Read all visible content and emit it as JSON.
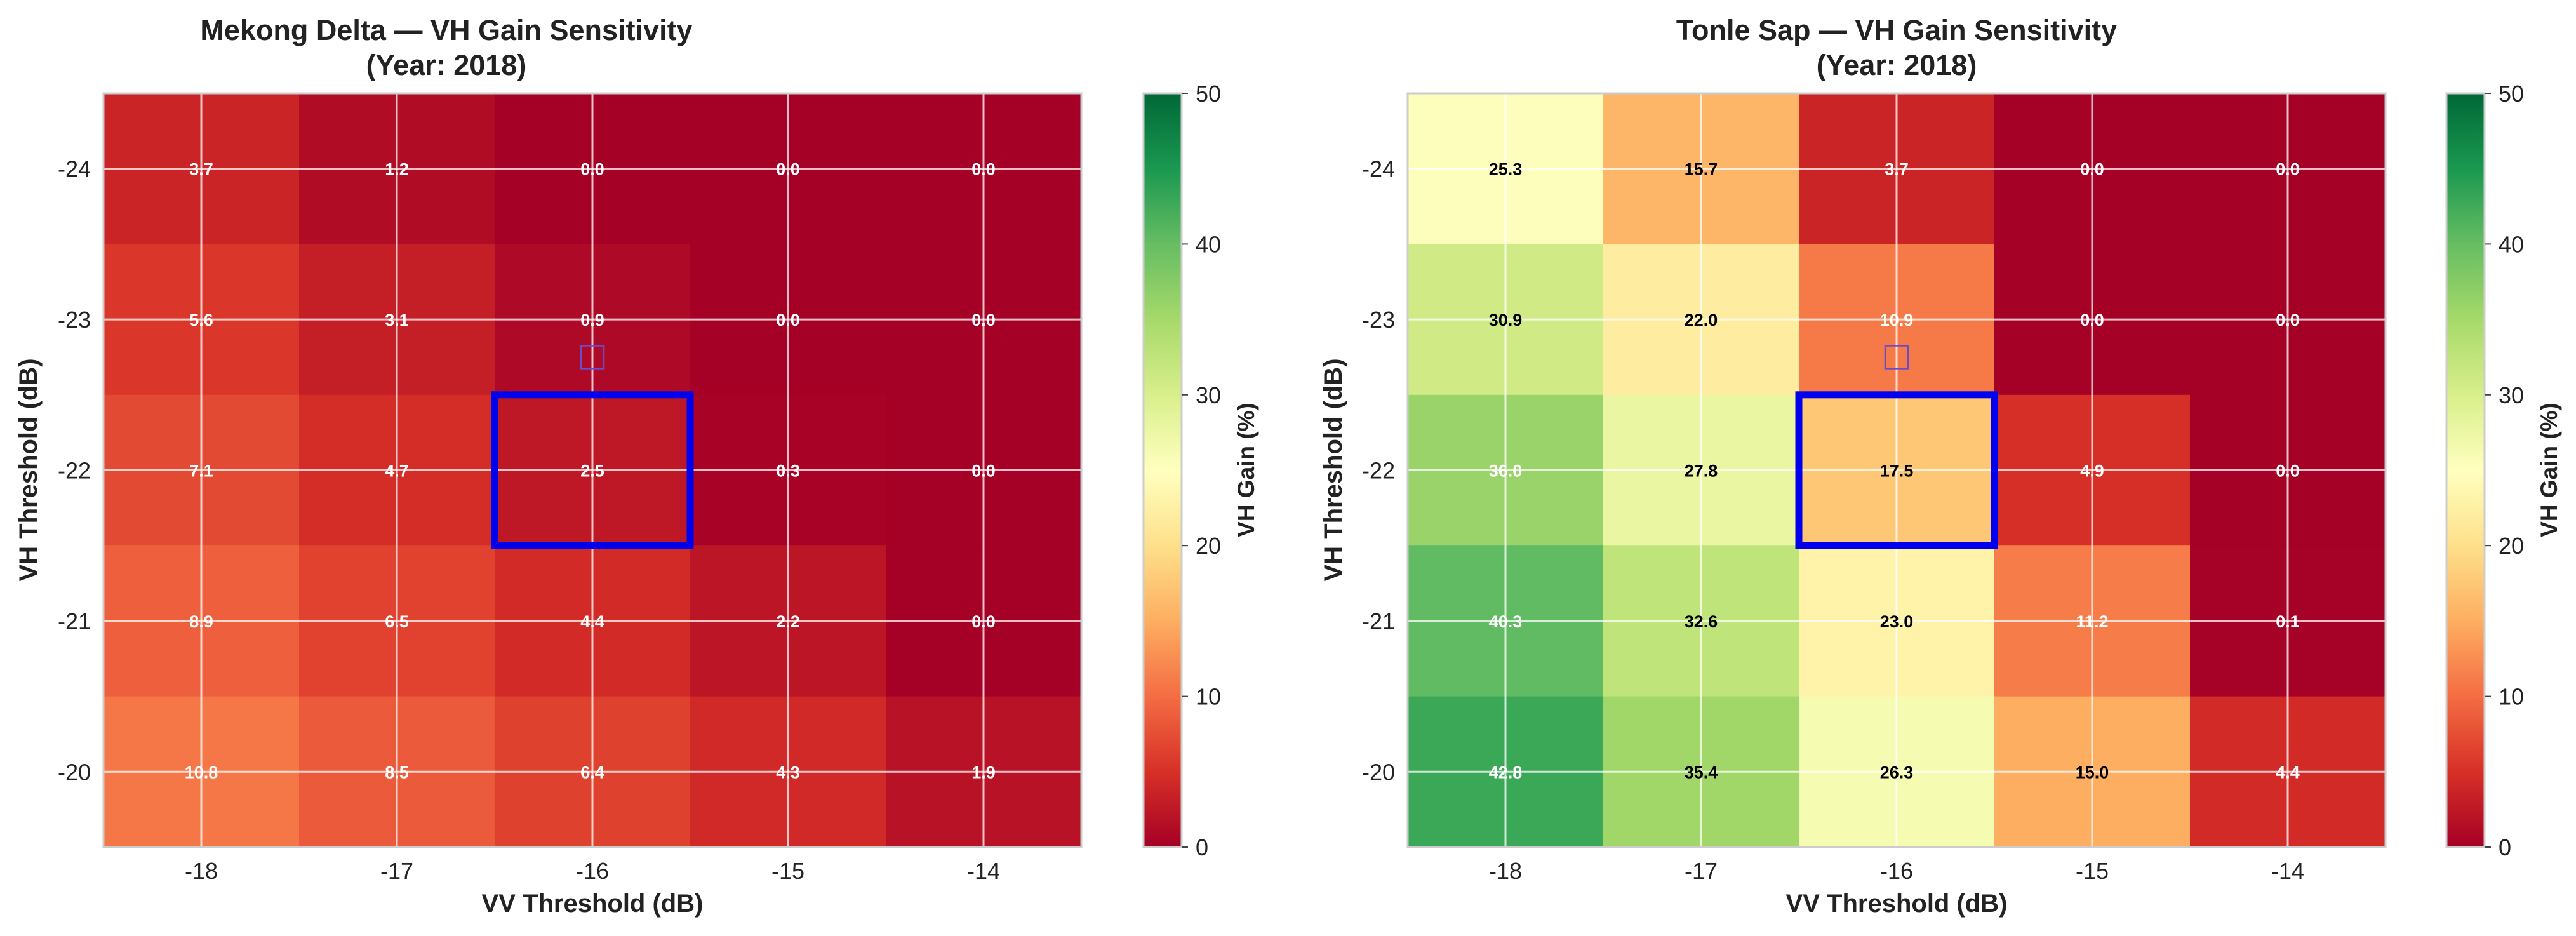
{
  "chart_data": [
    {
      "type": "heatmap",
      "title": "Mekong Delta — VH Gain Sensitivity",
      "subtitle": "(Year: 2018)",
      "xlabel": "VV Threshold (dB)",
      "ylabel": "VH Threshold (dB)",
      "x": [
        -18,
        -17,
        -16,
        -15,
        -14
      ],
      "y": [
        -24,
        -23,
        -22,
        -21,
        -20
      ],
      "x_tick_labels": [
        "-18",
        "-17",
        "-16",
        "-15",
        "-14"
      ],
      "y_tick_labels": [
        "-24",
        "-23",
        "-22",
        "-21",
        "-20"
      ],
      "values": [
        [
          3.7,
          1.2,
          0.0,
          0.0,
          0.0
        ],
        [
          5.6,
          3.1,
          0.9,
          0.0,
          0.0
        ],
        [
          7.1,
          4.7,
          2.5,
          0.3,
          0.0
        ],
        [
          8.9,
          6.5,
          4.4,
          2.2,
          0.0
        ],
        [
          10.8,
          8.5,
          6.4,
          4.3,
          1.9
        ]
      ],
      "value_labels": [
        [
          "3.7",
          "1.2",
          "0.0",
          "0.0",
          "0.0"
        ],
        [
          "5.6",
          "3.1",
          "0.9",
          "0.0",
          "0.0"
        ],
        [
          "7.1",
          "4.7",
          "2.5",
          "0.3",
          "0.0"
        ],
        [
          "8.9",
          "6.5",
          "4.4",
          "2.2",
          "0.0"
        ],
        [
          "10.8",
          "8.5",
          "6.4",
          "4.3",
          "1.9"
        ]
      ],
      "colormap": "RdYlGn",
      "colorbar": {
        "label": "VH Gain (%)",
        "range": [
          0,
          50
        ],
        "tick_labels": [
          "0",
          "10",
          "20",
          "30",
          "40",
          "50"
        ]
      },
      "highlight": {
        "x": -16,
        "y": -22,
        "color": "#0000ee"
      },
      "marker": {
        "x": -16,
        "y": -22.75,
        "shape": "square",
        "color": "#6a4cc9"
      },
      "grid": true
    },
    {
      "type": "heatmap",
      "title": "Tonle Sap — VH Gain Sensitivity",
      "subtitle": "(Year: 2018)",
      "xlabel": "VV Threshold (dB)",
      "ylabel": "VH Threshold (dB)",
      "x": [
        -18,
        -17,
        -16,
        -15,
        -14
      ],
      "y": [
        -24,
        -23,
        -22,
        -21,
        -20
      ],
      "x_tick_labels": [
        "-18",
        "-17",
        "-16",
        "-15",
        "-14"
      ],
      "y_tick_labels": [
        "-24",
        "-23",
        "-22",
        "-21",
        "-20"
      ],
      "values": [
        [
          25.3,
          15.7,
          3.7,
          0.0,
          0.0
        ],
        [
          30.9,
          22.0,
          10.9,
          0.0,
          0.0
        ],
        [
          36.0,
          27.8,
          17.5,
          4.9,
          0.0
        ],
        [
          40.3,
          32.6,
          23.0,
          11.2,
          0.1
        ],
        [
          42.8,
          35.4,
          26.3,
          15.0,
          4.4
        ]
      ],
      "value_labels": [
        [
          "25.3",
          "15.7",
          "3.7",
          "0.0",
          "0.0"
        ],
        [
          "30.9",
          "22.0",
          "10.9",
          "0.0",
          "0.0"
        ],
        [
          "36.0",
          "27.8",
          "17.5",
          "4.9",
          "0.0"
        ],
        [
          "40.3",
          "32.6",
          "23.0",
          "11.2",
          "0.1"
        ],
        [
          "42.8",
          "35.4",
          "26.3",
          "15.0",
          "4.4"
        ]
      ],
      "colormap": "RdYlGn",
      "colorbar": {
        "label": "VH Gain (%)",
        "range": [
          0,
          50
        ],
        "tick_labels": [
          "0",
          "10",
          "20",
          "30",
          "40",
          "50"
        ]
      },
      "highlight": {
        "x": -16,
        "y": -22,
        "color": "#0000ee"
      },
      "marker": {
        "x": -16,
        "y": -22.75,
        "shape": "square",
        "color": "#6a4cc9"
      },
      "grid": true
    }
  ]
}
